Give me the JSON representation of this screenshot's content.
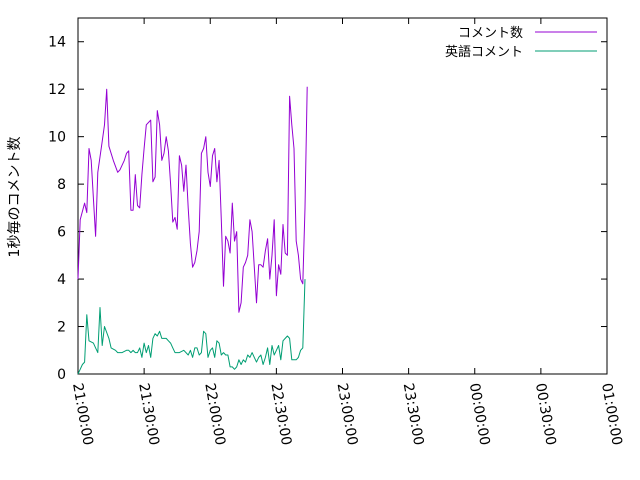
{
  "chart_data": {
    "type": "line",
    "ylabel": "1秒毎のコメント数",
    "xlabel": "",
    "ylim": [
      0,
      15
    ],
    "yticks": [
      0,
      2,
      4,
      6,
      8,
      10,
      12,
      14
    ],
    "xlim_minutes": [
      0,
      240
    ],
    "xticks": [
      {
        "min": 0,
        "label": "21:00:00"
      },
      {
        "min": 30,
        "label": "21:30:00"
      },
      {
        "min": 60,
        "label": "22:00:00"
      },
      {
        "min": 90,
        "label": "22:30:00"
      },
      {
        "min": 120,
        "label": "23:00:00"
      },
      {
        "min": 150,
        "label": "23:30:00"
      },
      {
        "min": 180,
        "label": "00:00:00"
      },
      {
        "min": 210,
        "label": "00:30:00"
      },
      {
        "min": 240,
        "label": "01:00:00"
      }
    ],
    "legend_position": "top-right",
    "grid": false,
    "series": [
      {
        "name": "コメント数",
        "color": "#9400d3",
        "points": [
          [
            0,
            4.0
          ],
          [
            1,
            6.5
          ],
          [
            3,
            7.2
          ],
          [
            4,
            6.8
          ],
          [
            5,
            9.5
          ],
          [
            6,
            9.0
          ],
          [
            8,
            5.8
          ],
          [
            9,
            8.5
          ],
          [
            11,
            9.8
          ],
          [
            12,
            10.5
          ],
          [
            13,
            12.0
          ],
          [
            14,
            9.6
          ],
          [
            16,
            9.0
          ],
          [
            18,
            8.5
          ],
          [
            19,
            8.6
          ],
          [
            21,
            9.0
          ],
          [
            22,
            9.3
          ],
          [
            23,
            9.4
          ],
          [
            24,
            6.9
          ],
          [
            25,
            6.9
          ],
          [
            26,
            8.4
          ],
          [
            27,
            7.1
          ],
          [
            28,
            7.0
          ],
          [
            29,
            8.4
          ],
          [
            30,
            9.5
          ],
          [
            31,
            10.5
          ],
          [
            33,
            10.7
          ],
          [
            34,
            8.1
          ],
          [
            35,
            8.3
          ],
          [
            36,
            11.1
          ],
          [
            37,
            10.5
          ],
          [
            38,
            9.0
          ],
          [
            39,
            9.3
          ],
          [
            40,
            10.0
          ],
          [
            41,
            9.4
          ],
          [
            42,
            8.0
          ],
          [
            43,
            6.4
          ],
          [
            44,
            6.6
          ],
          [
            45,
            6.1
          ],
          [
            46,
            9.2
          ],
          [
            47,
            8.8
          ],
          [
            48,
            7.7
          ],
          [
            49,
            8.8
          ],
          [
            50,
            7.0
          ],
          [
            51,
            5.5
          ],
          [
            52,
            4.5
          ],
          [
            53,
            4.7
          ],
          [
            54,
            5.2
          ],
          [
            55,
            6.0
          ],
          [
            56,
            9.3
          ],
          [
            57,
            9.5
          ],
          [
            58,
            10.0
          ],
          [
            59,
            8.5
          ],
          [
            60,
            7.9
          ],
          [
            61,
            9.2
          ],
          [
            62,
            9.5
          ],
          [
            63,
            8.1
          ],
          [
            64,
            9.0
          ],
          [
            65,
            6.5
          ],
          [
            66,
            3.7
          ],
          [
            67,
            5.8
          ],
          [
            68,
            5.6
          ],
          [
            69,
            5.1
          ],
          [
            70,
            7.2
          ],
          [
            71,
            5.6
          ],
          [
            72,
            6.0
          ],
          [
            73,
            2.6
          ],
          [
            74,
            3.0
          ],
          [
            75,
            4.5
          ],
          [
            76,
            4.7
          ],
          [
            77,
            5.0
          ],
          [
            78,
            6.5
          ],
          [
            79,
            6.0
          ],
          [
            80,
            4.5
          ],
          [
            81,
            3.0
          ],
          [
            82,
            4.6
          ],
          [
            83,
            4.6
          ],
          [
            84,
            4.5
          ],
          [
            85,
            5.2
          ],
          [
            86,
            5.7
          ],
          [
            87,
            4.0
          ],
          [
            88,
            5.0
          ],
          [
            89,
            6.5
          ],
          [
            90,
            3.3
          ],
          [
            91,
            4.6
          ],
          [
            92,
            4.2
          ],
          [
            93,
            6.3
          ],
          [
            94,
            5.1
          ],
          [
            95,
            5.0
          ],
          [
            96,
            11.7
          ],
          [
            97,
            10.5
          ],
          [
            98,
            9.5
          ],
          [
            99,
            5.6
          ],
          [
            100,
            5.0
          ],
          [
            101,
            4.0
          ],
          [
            102,
            3.8
          ],
          [
            103,
            7.0
          ],
          [
            104,
            12.1
          ]
        ]
      },
      {
        "name": "英語コメント",
        "color": "#009e73",
        "points": [
          [
            0,
            0.0
          ],
          [
            1,
            0.2
          ],
          [
            2,
            0.4
          ],
          [
            3,
            0.5
          ],
          [
            4,
            2.5
          ],
          [
            5,
            1.4
          ],
          [
            7,
            1.3
          ],
          [
            8,
            1.1
          ],
          [
            9,
            0.9
          ],
          [
            10,
            2.8
          ],
          [
            11,
            1.2
          ],
          [
            12,
            2.0
          ],
          [
            14,
            1.5
          ],
          [
            15,
            1.1
          ],
          [
            17,
            1.0
          ],
          [
            18,
            0.9
          ],
          [
            19,
            0.9
          ],
          [
            20,
            0.9
          ],
          [
            22,
            1.0
          ],
          [
            23,
            1.0
          ],
          [
            24,
            0.9
          ],
          [
            25,
            1.0
          ],
          [
            26,
            0.9
          ],
          [
            27,
            0.9
          ],
          [
            28,
            1.1
          ],
          [
            29,
            0.7
          ],
          [
            30,
            1.3
          ],
          [
            31,
            0.9
          ],
          [
            32,
            1.2
          ],
          [
            33,
            0.7
          ],
          [
            34,
            1.5
          ],
          [
            35,
            1.7
          ],
          [
            36,
            1.6
          ],
          [
            37,
            1.8
          ],
          [
            38,
            1.5
          ],
          [
            40,
            1.5
          ],
          [
            41,
            1.4
          ],
          [
            42,
            1.3
          ],
          [
            43,
            1.1
          ],
          [
            44,
            0.9
          ],
          [
            46,
            0.9
          ],
          [
            48,
            1.0
          ],
          [
            50,
            0.8
          ],
          [
            51,
            1.0
          ],
          [
            52,
            0.7
          ],
          [
            53,
            1.1
          ],
          [
            54,
            1.1
          ],
          [
            55,
            0.8
          ],
          [
            56,
            0.9
          ],
          [
            57,
            1.8
          ],
          [
            58,
            1.7
          ],
          [
            59,
            0.7
          ],
          [
            60,
            1.0
          ],
          [
            61,
            1.1
          ],
          [
            62,
            0.7
          ],
          [
            63,
            1.4
          ],
          [
            64,
            1.3
          ],
          [
            65,
            0.8
          ],
          [
            66,
            0.9
          ],
          [
            67,
            0.8
          ],
          [
            68,
            0.8
          ],
          [
            69,
            0.3
          ],
          [
            70,
            0.3
          ],
          [
            71,
            0.2
          ],
          [
            72,
            0.3
          ],
          [
            73,
            0.6
          ],
          [
            74,
            0.4
          ],
          [
            75,
            0.6
          ],
          [
            76,
            0.5
          ],
          [
            77,
            0.8
          ],
          [
            78,
            0.7
          ],
          [
            79,
            0.9
          ],
          [
            80,
            0.7
          ],
          [
            81,
            0.5
          ],
          [
            82,
            0.7
          ],
          [
            83,
            0.8
          ],
          [
            84,
            0.4
          ],
          [
            85,
            0.7
          ],
          [
            86,
            1.1
          ],
          [
            87,
            0.4
          ],
          [
            88,
            1.2
          ],
          [
            89,
            0.8
          ],
          [
            90,
            1.0
          ],
          [
            91,
            1.2
          ],
          [
            92,
            0.6
          ],
          [
            93,
            1.4
          ],
          [
            94,
            1.5
          ],
          [
            95,
            1.6
          ],
          [
            96,
            1.5
          ],
          [
            97,
            0.6
          ],
          [
            98,
            0.6
          ],
          [
            99,
            0.6
          ],
          [
            100,
            0.7
          ],
          [
            101,
            1.0
          ],
          [
            102,
            1.1
          ],
          [
            103,
            4.0
          ]
        ]
      }
    ]
  }
}
